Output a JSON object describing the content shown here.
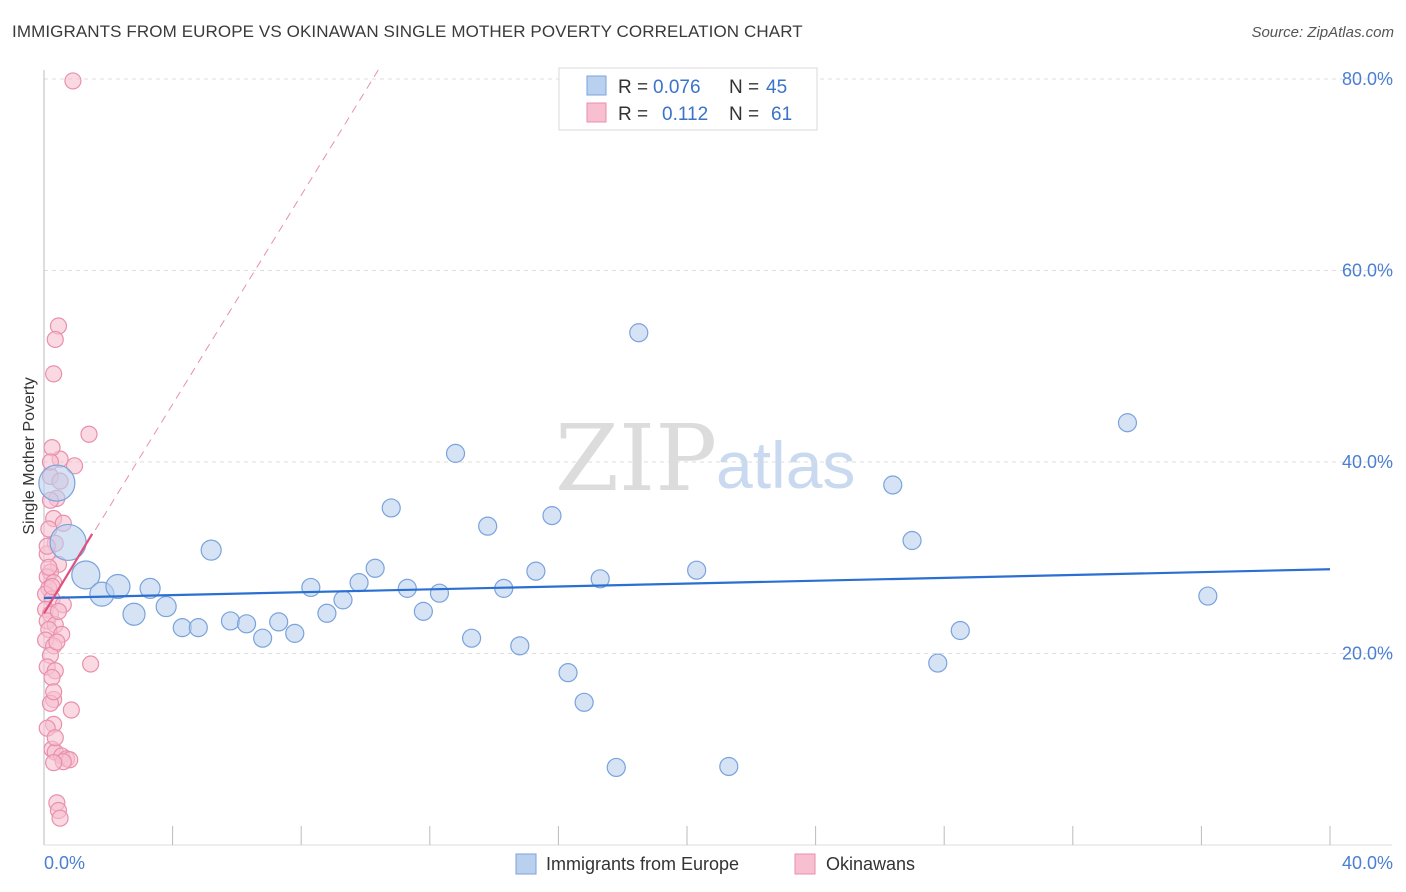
{
  "header": {
    "title": "IMMIGRANTS FROM EUROPE VS OKINAWAN SINGLE MOTHER POVERTY CORRELATION CHART",
    "source": "Source: ZipAtlas.com"
  },
  "watermark": {
    "zip": "ZIP",
    "atlas": "atlas"
  },
  "colors": {
    "blue_fill": "#b9d0ef",
    "blue_stroke": "#7aa3dc",
    "blue_line": "#2a6fd1",
    "pink_fill": "#f7bfd0",
    "pink_stroke": "#e98fad",
    "pink_line": "#e0507e",
    "grid": "#dddddd",
    "axis_label": "#4a7fd1"
  },
  "legend": {
    "r_label": "R =",
    "n_label": "N =",
    "items": [
      {
        "series": "Immigrants from Europe",
        "r": "0.076",
        "n": "45",
        "color": "blue"
      },
      {
        "series": "Okinawans",
        "r": "0.112",
        "n": "61",
        "color": "pink"
      }
    ]
  },
  "chart_data": {
    "type": "scatter",
    "ylabel": "Single Mother Poverty",
    "xlim": [
      0,
      40
    ],
    "ylim": [
      0,
      80
    ],
    "x_tick_labels": [
      "0.0%",
      "40.0%"
    ],
    "y_ticks": [
      20,
      40,
      60,
      80
    ],
    "y_tick_labels": [
      "20.0%",
      "40.0%",
      "60.0%",
      "80.0%"
    ],
    "grid": true,
    "legend_position": "top-center",
    "series": [
      {
        "name": "Immigrants from Europe",
        "color": "blue",
        "trend": {
          "x0": 0,
          "y0": 25.8,
          "x1": 40,
          "y1": 28.8
        },
        "points": [
          [
            0.4,
            37.8,
            18
          ],
          [
            0.75,
            31.6,
            18
          ],
          [
            1.3,
            28.2,
            14
          ],
          [
            1.8,
            26.2,
            12
          ],
          [
            2.3,
            27.0,
            12
          ],
          [
            2.8,
            24.1,
            11
          ],
          [
            3.3,
            26.8,
            10
          ],
          [
            3.8,
            24.9,
            10
          ],
          [
            4.3,
            22.7,
            9
          ],
          [
            4.8,
            22.7,
            9
          ],
          [
            5.2,
            30.8,
            10
          ],
          [
            5.8,
            23.4,
            9
          ],
          [
            6.3,
            23.1,
            9
          ],
          [
            6.8,
            21.6,
            9
          ],
          [
            7.3,
            23.3,
            9
          ],
          [
            7.8,
            22.1,
            9
          ],
          [
            8.3,
            26.9,
            9
          ],
          [
            8.8,
            24.2,
            9
          ],
          [
            9.3,
            25.6,
            9
          ],
          [
            9.8,
            27.4,
            9
          ],
          [
            10.3,
            28.9,
            9
          ],
          [
            10.8,
            35.2,
            9
          ],
          [
            11.3,
            26.8,
            9
          ],
          [
            11.8,
            24.4,
            9
          ],
          [
            12.3,
            26.3,
            9
          ],
          [
            12.8,
            40.9,
            9
          ],
          [
            13.3,
            21.6,
            9
          ],
          [
            13.8,
            33.3,
            9
          ],
          [
            14.3,
            26.8,
            9
          ],
          [
            14.8,
            20.8,
            9
          ],
          [
            15.3,
            28.6,
            9
          ],
          [
            15.8,
            34.4,
            9
          ],
          [
            16.3,
            18.0,
            9
          ],
          [
            16.8,
            14.9,
            9
          ],
          [
            17.3,
            27.8,
            9
          ],
          [
            17.8,
            8.1,
            9
          ],
          [
            18.5,
            53.5,
            9
          ],
          [
            20.3,
            28.7,
            9
          ],
          [
            21.3,
            8.2,
            9
          ],
          [
            26.4,
            37.6,
            9
          ],
          [
            27.0,
            31.8,
            9
          ],
          [
            27.8,
            19.0,
            9
          ],
          [
            28.5,
            22.4,
            9
          ],
          [
            33.7,
            44.1,
            9
          ],
          [
            36.2,
            26.0,
            9
          ]
        ]
      },
      {
        "name": "Okinawans",
        "color": "pink",
        "trend": {
          "x0": 0,
          "y0": 24.2,
          "x1": 1.5,
          "y1": 32.5
        },
        "trend_extended": {
          "x0": 0,
          "y0": 24.2,
          "x1": 10.5,
          "y1": 81.5
        },
        "points": [
          [
            0.9,
            79.8,
            8
          ],
          [
            0.45,
            54.2,
            8
          ],
          [
            0.35,
            52.8,
            8
          ],
          [
            0.3,
            49.2,
            8
          ],
          [
            0.5,
            40.3,
            8
          ],
          [
            1.4,
            42.9,
            8
          ],
          [
            0.25,
            41.5,
            8
          ],
          [
            0.95,
            39.6,
            8
          ],
          [
            0.2,
            38.5,
            8
          ],
          [
            0.4,
            36.2,
            8
          ],
          [
            0.3,
            34.1,
            8
          ],
          [
            0.6,
            33.6,
            8
          ],
          [
            0.15,
            33.0,
            8
          ],
          [
            0.35,
            31.5,
            8
          ],
          [
            0.1,
            30.4,
            8
          ],
          [
            0.45,
            29.3,
            8
          ],
          [
            0.2,
            28.5,
            8
          ],
          [
            0.1,
            28.0,
            8
          ],
          [
            0.3,
            27.4,
            8
          ],
          [
            0.15,
            26.8,
            8
          ],
          [
            0.05,
            26.2,
            8
          ],
          [
            0.25,
            25.7,
            8
          ],
          [
            0.6,
            25.1,
            8
          ],
          [
            0.05,
            24.6,
            8
          ],
          [
            0.2,
            24.1,
            8
          ],
          [
            0.1,
            23.4,
            8
          ],
          [
            0.35,
            23.0,
            8
          ],
          [
            0.15,
            22.5,
            8
          ],
          [
            0.55,
            22.0,
            8
          ],
          [
            0.05,
            21.4,
            8
          ],
          [
            0.3,
            20.8,
            8
          ],
          [
            0.2,
            19.8,
            8
          ],
          [
            1.45,
            18.9,
            8
          ],
          [
            0.1,
            18.6,
            8
          ],
          [
            0.35,
            18.2,
            8
          ],
          [
            0.25,
            17.5,
            8
          ],
          [
            0.3,
            15.2,
            8
          ],
          [
            0.2,
            14.8,
            8
          ],
          [
            0.85,
            14.1,
            8
          ],
          [
            0.3,
            12.6,
            8
          ],
          [
            0.1,
            12.2,
            8
          ],
          [
            0.25,
            10.0,
            8
          ],
          [
            0.35,
            9.7,
            8
          ],
          [
            0.55,
            9.3,
            8
          ],
          [
            0.7,
            9.0,
            8
          ],
          [
            0.8,
            8.9,
            8
          ],
          [
            0.6,
            8.7,
            8
          ],
          [
            0.3,
            8.6,
            8
          ],
          [
            0.4,
            4.4,
            8
          ],
          [
            0.45,
            3.6,
            8
          ],
          [
            0.5,
            2.8,
            8
          ],
          [
            0.2,
            36.0,
            8
          ],
          [
            0.45,
            24.4,
            8
          ],
          [
            0.25,
            27.0,
            8
          ],
          [
            0.15,
            29.0,
            8
          ],
          [
            0.4,
            21.2,
            8
          ],
          [
            0.3,
            16.0,
            8
          ],
          [
            0.5,
            38.0,
            8
          ],
          [
            0.2,
            40.0,
            8
          ],
          [
            0.35,
            11.2,
            8
          ],
          [
            0.1,
            31.2,
            8
          ]
        ]
      }
    ]
  }
}
